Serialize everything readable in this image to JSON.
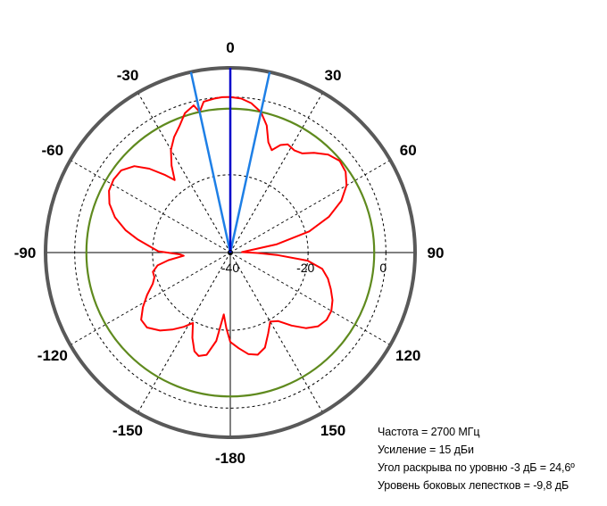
{
  "chart_data": {
    "type": "polar",
    "angle_ticks": [
      {
        "deg": 0,
        "label": "0"
      },
      {
        "deg": 30,
        "label": "30"
      },
      {
        "deg": 60,
        "label": "60"
      },
      {
        "deg": 90,
        "label": "90"
      },
      {
        "deg": 120,
        "label": "120"
      },
      {
        "deg": 150,
        "label": "150"
      },
      {
        "deg": 180,
        "label": "-180"
      },
      {
        "deg": -150,
        "label": "-150"
      },
      {
        "deg": -120,
        "label": "-120"
      },
      {
        "deg": -90,
        "label": "-90"
      },
      {
        "deg": -60,
        "label": "-60"
      },
      {
        "deg": -30,
        "label": "-30"
      }
    ],
    "radial_ticks": [
      {
        "value": -40,
        "label": "-40"
      },
      {
        "value": -20,
        "label": "-20"
      },
      {
        "value": 0,
        "label": "0"
      }
    ],
    "r_range": [
      -40,
      7.5
    ],
    "reference_circle_db": -3,
    "beam_lines_deg": [
      -12.3,
      12.3
    ],
    "main_direction_deg": 0,
    "series": [
      {
        "points": [
          [
            0,
            0
          ],
          [
            4,
            -0.3
          ],
          [
            8,
            -1.2
          ],
          [
            12.3,
            -3
          ],
          [
            16,
            -6
          ],
          [
            19,
            -10
          ],
          [
            22,
            -11.6
          ],
          [
            25,
            -9.5
          ],
          [
            28,
            -8.5
          ],
          [
            32,
            -9
          ],
          [
            36,
            -8.5
          ],
          [
            40,
            -6.5
          ],
          [
            45,
            -4.4
          ],
          [
            50,
            -3.3
          ],
          [
            55,
            -3.8
          ],
          [
            60,
            -5.5
          ],
          [
            65,
            -8.5
          ],
          [
            70,
            -13
          ],
          [
            75,
            -19
          ],
          [
            80,
            -28
          ],
          [
            85,
            -36
          ],
          [
            88,
            -37
          ],
          [
            91,
            -33
          ],
          [
            93,
            -28
          ],
          [
            96,
            -20
          ],
          [
            100,
            -16
          ],
          [
            105,
            -14
          ],
          [
            110,
            -12.5
          ],
          [
            115,
            -11
          ],
          [
            120,
            -10
          ],
          [
            125,
            -9.8
          ],
          [
            130,
            -10.5
          ],
          [
            135,
            -12.5
          ],
          [
            140,
            -15.5
          ],
          [
            145,
            -18.5
          ],
          [
            150,
            -19.5
          ],
          [
            155,
            -17
          ],
          [
            160,
            -14
          ],
          [
            165,
            -12.8
          ],
          [
            170,
            -13.5
          ],
          [
            175,
            -15.3
          ],
          [
            180,
            -17
          ],
          [
            -177,
            -20.5
          ],
          [
            -174,
            -24
          ],
          [
            -171,
            -17
          ],
          [
            -167,
            -13
          ],
          [
            -163,
            -12.2
          ],
          [
            -160,
            -13
          ],
          [
            -156,
            -16
          ],
          [
            -152,
            -19.5
          ],
          [
            -148,
            -17.5
          ],
          [
            -143,
            -15.2
          ],
          [
            -138,
            -13
          ],
          [
            -132,
            -11.2
          ],
          [
            -127,
            -11.3
          ],
          [
            -122,
            -13.5
          ],
          [
            -117,
            -16
          ],
          [
            -112,
            -18.5
          ],
          [
            -108,
            -19.5
          ],
          [
            -104,
            -19.5
          ],
          [
            -100,
            -21
          ],
          [
            -97,
            -24
          ],
          [
            -94,
            -28
          ],
          [
            -92,
            -27
          ],
          [
            -89,
            -21.5
          ],
          [
            -86,
            -19.5
          ],
          [
            -82,
            -16
          ],
          [
            -78,
            -12.5
          ],
          [
            -73,
            -9
          ],
          [
            -68,
            -6.5
          ],
          [
            -63,
            -5
          ],
          [
            -58,
            -4.6
          ],
          [
            -53,
            -4.9
          ],
          [
            -48,
            -6.8
          ],
          [
            -44,
            -10
          ],
          [
            -40,
            -14
          ],
          [
            -37.5,
            -16.5
          ],
          [
            -34,
            -13
          ],
          [
            -30,
            -9.5
          ],
          [
            -26,
            -7
          ],
          [
            -22,
            -5
          ],
          [
            -18,
            -2.3
          ],
          [
            -14,
            -1.0
          ],
          [
            -12.3,
            -3
          ],
          [
            -10,
            -0.6
          ],
          [
            -6,
            -0.2
          ],
          [
            -3,
            0
          ]
        ]
      }
    ]
  },
  "info": {
    "frequency": "Частота = 2700 МГц",
    "gain": "Усиление = 15 дБи",
    "beamwidth": "Угол раскрыва по уровню -3 дБ = 24,6º",
    "sidelobe": "Уровень боковых лепестков = -9,8 дБ"
  },
  "colors": {
    "outer_circle": "#595959",
    "reference_circle": "#5f8a1e",
    "pattern": "#ff0000",
    "main_line": "#0000cc",
    "beam_lines": "#1e7fe6",
    "grid": "#000000"
  }
}
